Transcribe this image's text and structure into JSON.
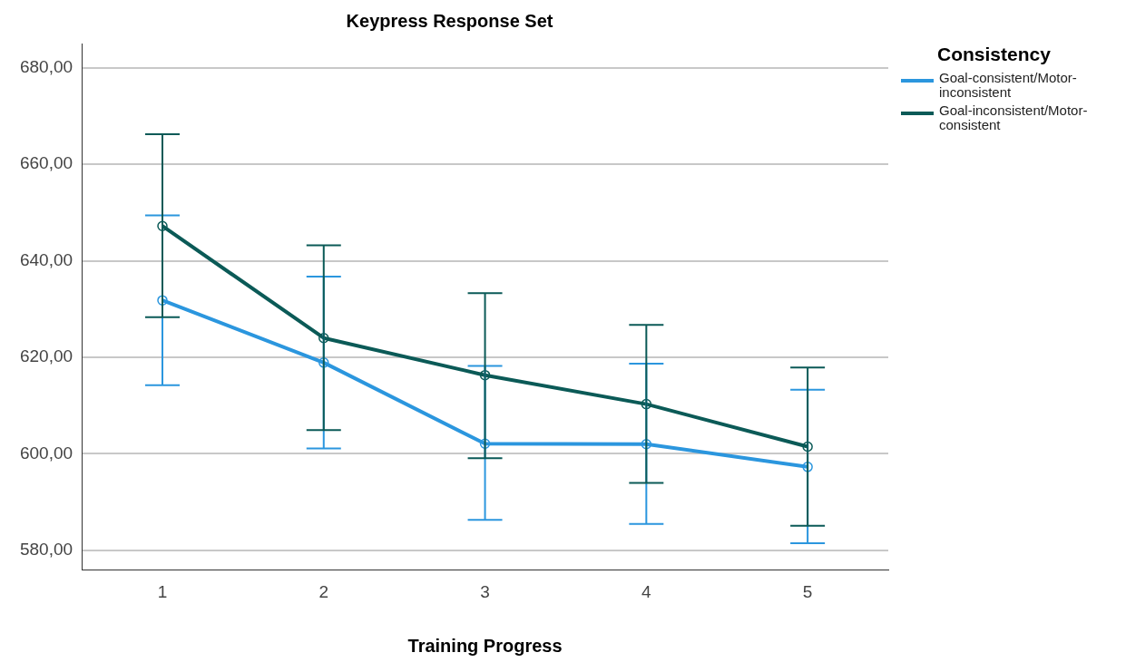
{
  "chart_data": {
    "type": "line",
    "title": "Keypress Response Set",
    "xlabel": "Training Progress",
    "legend_title": "Consistency",
    "categories": [
      "1",
      "2",
      "3",
      "4",
      "5"
    ],
    "series": [
      {
        "name": "Goal-consistent/Motor-inconsistent",
        "color": "#2b96de",
        "values": [
          631.8,
          618.9,
          602.1,
          602.0,
          597.3
        ],
        "errors": [
          [
            614.2,
            649.4
          ],
          [
            601.1,
            636.7
          ],
          [
            586.3,
            618.2
          ],
          [
            585.5,
            618.7
          ],
          [
            581.5,
            613.3
          ]
        ]
      },
      {
        "name": "Goal-inconsistent/Motor-consistent",
        "color": "#0b5a57",
        "values": [
          647.2,
          624.0,
          616.3,
          610.3,
          601.5
        ],
        "errors": [
          [
            628.3,
            666.2
          ],
          [
            604.9,
            643.2
          ],
          [
            599.1,
            633.3
          ],
          [
            594.0,
            626.7
          ],
          [
            585.1,
            617.9
          ]
        ]
      }
    ],
    "ylim": [
      576,
      685
    ],
    "yticks": [
      {
        "value": 580,
        "label": "580,00"
      },
      {
        "value": 600,
        "label": "600,00"
      },
      {
        "value": 620,
        "label": "620,00"
      },
      {
        "value": 640,
        "label": "640,00"
      },
      {
        "value": 660,
        "label": "660,00"
      },
      {
        "value": 680,
        "label": "680,00"
      }
    ],
    "grid": "y",
    "legend": "top right",
    "marker": "circle",
    "line_style": "solid"
  }
}
